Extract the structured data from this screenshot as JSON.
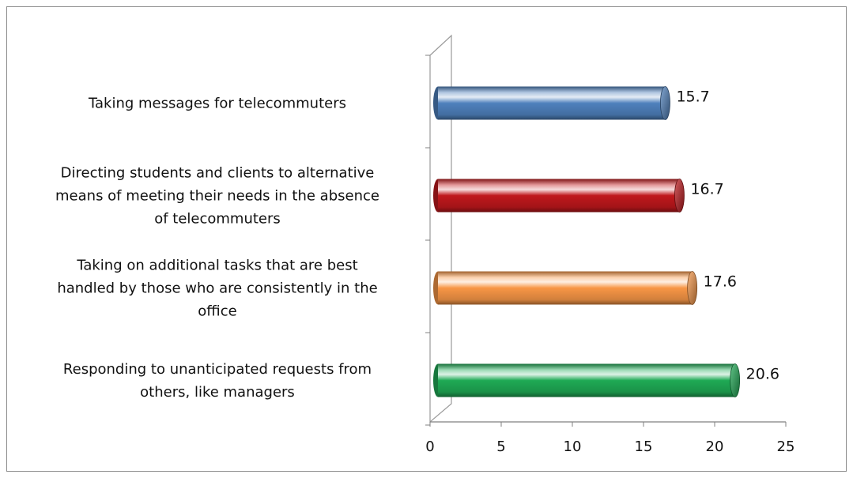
{
  "chart_data": {
    "type": "bar",
    "orientation": "horizontal",
    "style": "3d-cylinder",
    "categories": [
      "Taking messages for telecommuters",
      "Directing students and clients to alternative means of meeting their needs in the absence of telecommuters",
      "Taking on additional tasks that are best handled by those who are consistently in the office",
      "Responding to unanticipated requests from others, like managers"
    ],
    "category_lines": [
      [
        "Taking messages for telecommuters"
      ],
      [
        "Directing students and clients to alternative",
        "means of meeting their needs in the absence",
        "of telecommuters"
      ],
      [
        "Taking on additional tasks that are best",
        "handled by those who are consistently in the",
        "office"
      ],
      [
        "Responding to unanticipated requests from",
        "others, like managers"
      ]
    ],
    "values": [
      15.7,
      16.7,
      17.6,
      20.6
    ],
    "value_labels": [
      "15.7",
      "16.7",
      "17.6",
      "20.6"
    ],
    "bar_colors": [
      "#4f81bd",
      "#c0181c",
      "#f79646",
      "#1faa55"
    ],
    "xlim": [
      0,
      25
    ],
    "xticks": [
      0,
      5,
      10,
      15,
      20,
      25
    ],
    "tick_labels": [
      "0",
      "5",
      "10",
      "15",
      "20",
      "25"
    ],
    "title": "",
    "xlabel": "",
    "ylabel": "",
    "grid": false,
    "legend": "none"
  }
}
